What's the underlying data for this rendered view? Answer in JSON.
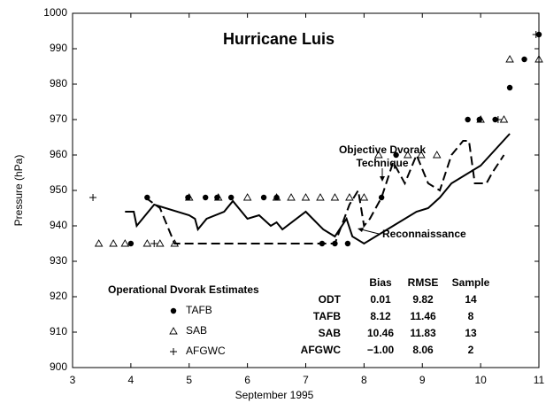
{
  "chart_data": {
    "type": "line",
    "title": "Hurricane Luis",
    "x_label": "September 1995",
    "y_label": "Pressure (hPa)",
    "xlim": [
      3,
      11
    ],
    "xticks": [
      3,
      4,
      5,
      6,
      7,
      8,
      9,
      10,
      11
    ],
    "ylim": [
      900,
      1000
    ],
    "yticks": [
      900,
      910,
      920,
      930,
      940,
      950,
      960,
      970,
      980,
      990,
      1000
    ],
    "grid": false,
    "legend_title": "Operational Dvorak Estimates",
    "series": [
      {
        "name": "TAFB",
        "kind": "marker",
        "marker": "dot",
        "color": "#000000",
        "x": [
          4.0,
          4.28,
          4.98,
          5.28,
          5.48,
          5.72,
          6.28,
          6.5,
          7.28,
          7.5,
          7.72,
          8.3,
          8.55,
          9.78,
          9.98,
          10.25,
          10.5,
          10.75,
          11.0
        ],
        "values": [
          935,
          948,
          948,
          948,
          948,
          948,
          948,
          948,
          935,
          935,
          935,
          948,
          960,
          970,
          970,
          970,
          979,
          987,
          994
        ]
      },
      {
        "name": "SAB",
        "kind": "marker",
        "marker": "triangle",
        "color": "#000000",
        "x": [
          3.45,
          3.7,
          3.9,
          4.28,
          4.5,
          4.75,
          5.0,
          5.5,
          6.0,
          6.5,
          6.75,
          7.0,
          7.25,
          7.5,
          7.75,
          8.0,
          8.25,
          8.75,
          8.98,
          9.25,
          10.0,
          10.4,
          10.5,
          11.0
        ],
        "values": [
          935,
          935,
          935,
          935,
          935,
          935,
          948,
          948,
          948,
          948,
          948,
          948,
          948,
          948,
          948,
          948,
          960,
          960,
          960,
          960,
          970,
          970,
          987,
          987
        ]
      },
      {
        "name": "AFGWC",
        "kind": "marker",
        "marker": "plus",
        "color": "#000000",
        "x": [
          3.35,
          4.4,
          10.3,
          10.95
        ],
        "values": [
          948,
          935,
          970,
          994
        ]
      },
      {
        "name": "Objective Dvorak Technique",
        "kind": "line",
        "dash": true,
        "color": "#000000",
        "x": [
          4.25,
          4.5,
          4.75,
          7.5,
          7.75,
          7.9,
          8.0,
          8.1,
          8.3,
          8.5,
          8.7,
          8.9,
          9.1,
          9.3,
          9.5,
          9.7,
          9.8,
          9.9,
          10.1,
          10.2,
          10.4
        ],
        "values": [
          948,
          945,
          935,
          935,
          946,
          950,
          940,
          942,
          948,
          958,
          952,
          960,
          952,
          950,
          960,
          964,
          964,
          952,
          952,
          955,
          960
        ]
      },
      {
        "name": "Reconnaissance",
        "kind": "line",
        "dash": false,
        "color": "#000000",
        "x": [
          3.9,
          4.05,
          4.1,
          4.4,
          5.0,
          5.1,
          5.15,
          5.3,
          5.6,
          5.75,
          6.0,
          6.2,
          6.4,
          6.5,
          6.6,
          7.0,
          7.3,
          7.4,
          7.5,
          7.7,
          7.8,
          8.0,
          8.5,
          8.9,
          9.1,
          9.3,
          9.5,
          10.0,
          10.5
        ],
        "values": [
          944,
          944,
          940,
          946,
          943,
          942,
          939,
          942,
          944,
          947,
          942,
          943,
          940,
          941,
          939,
          944,
          939,
          938,
          937,
          942,
          937,
          935,
          940,
          944,
          945,
          948,
          952,
          957,
          966
        ]
      }
    ],
    "table": {
      "columns": [
        "Bias",
        "RMSE",
        "Sample"
      ],
      "rows": [
        [
          "ODT",
          "0.01",
          "9.82",
          "14"
        ],
        [
          "TAFB",
          "8.12",
          "11.46",
          "8"
        ],
        [
          "SAB",
          "10.46",
          "11.83",
          "13"
        ],
        [
          "AFGWC",
          "−1.00",
          "8.06",
          "2"
        ]
      ]
    }
  }
}
